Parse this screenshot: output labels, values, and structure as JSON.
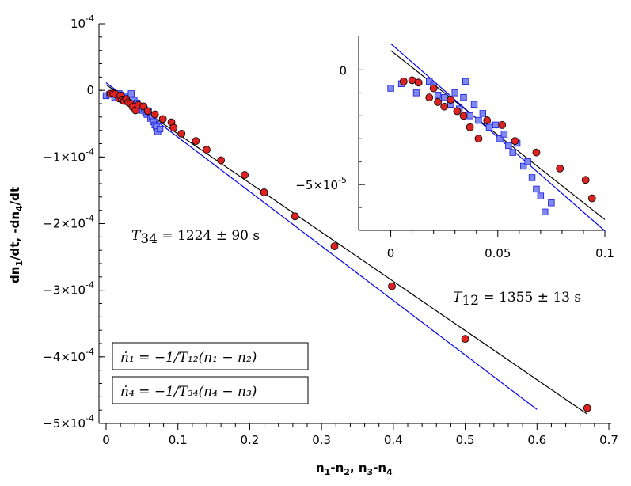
{
  "chart_data": [
    {
      "id": "main",
      "type": "scatter",
      "title": "",
      "xlabel": "n1-n2, n3-n4",
      "ylabel": "dn1/dt, -dn4/dt",
      "xlim": [
        0,
        0.7
      ],
      "ylim": [
        -0.0005,
        0.0001
      ],
      "grid": false,
      "x_ticks": [
        {
          "value": 0,
          "label": "0"
        },
        {
          "value": 0.1,
          "label": "0.1"
        },
        {
          "value": 0.2,
          "label": "0.2"
        },
        {
          "value": 0.3,
          "label": "0.3"
        },
        {
          "value": 0.4,
          "label": "0.4"
        },
        {
          "value": 0.5,
          "label": "0.5"
        },
        {
          "value": 0.6,
          "label": "0.6"
        },
        {
          "value": 0.7,
          "label": "0.7"
        }
      ],
      "y_ticks": [
        {
          "value": 0.0001,
          "mant": "10",
          "exp": "-4"
        },
        {
          "value": 0,
          "mant": "0",
          "exp": ""
        },
        {
          "value": -0.0001,
          "mant": "−1×10",
          "exp": "-4"
        },
        {
          "value": -0.0002,
          "mant": "−2×10",
          "exp": "-4"
        },
        {
          "value": -0.0003,
          "mant": "−3×10",
          "exp": "-4"
        },
        {
          "value": -0.0004,
          "mant": "−4×10",
          "exp": "-4"
        },
        {
          "value": -0.0005,
          "mant": "−5×10",
          "exp": "-4"
        }
      ],
      "series": [
        {
          "name": "dn1/dt (red circles)",
          "marker": "circle",
          "color": "#dd2222",
          "x": [
            0.006,
            0.01,
            0.013,
            0.018,
            0.02,
            0.022,
            0.025,
            0.028,
            0.031,
            0.034,
            0.037,
            0.041,
            0.045,
            0.052,
            0.058,
            0.068,
            0.079,
            0.091,
            0.094,
            0.105,
            0.125,
            0.14,
            0.16,
            0.193,
            0.22,
            0.263,
            0.318,
            0.398,
            0.5,
            0.67
          ],
          "y": [
            -5e-06,
            -4.5e-06,
            -5.5e-06,
            -1.2e-05,
            -8e-06,
            -1.4e-05,
            -1.6e-05,
            -1.3e-05,
            -1.8e-05,
            -2e-05,
            -2.5e-05,
            -3e-05,
            -2.2e-05,
            -2.4e-05,
            -3.1e-05,
            -3.6e-05,
            -4.3e-05,
            -4.8e-05,
            -5.6e-05,
            -6.5e-05,
            -7.6e-05,
            -8.9e-05,
            -0.000105,
            -0.000127,
            -0.000153,
            -0.000189,
            -0.000234,
            -0.000294,
            -0.000373,
            -0.000477
          ]
        },
        {
          "name": "-dn4/dt (blue squares)",
          "marker": "square",
          "color": "#7f88f0",
          "x": [
            0.0,
            0.005,
            0.012,
            0.018,
            0.02,
            0.022,
            0.025,
            0.028,
            0.03,
            0.032,
            0.034,
            0.035,
            0.037,
            0.039,
            0.041,
            0.043,
            0.046,
            0.049,
            0.051,
            0.053,
            0.055,
            0.057,
            0.059,
            0.062,
            0.064,
            0.066,
            0.068,
            0.07,
            0.072,
            0.075
          ],
          "y": [
            -8e-06,
            -6e-06,
            -1e-05,
            -5e-06,
            -7e-06,
            -1.1e-05,
            -1.2e-05,
            -1.5e-05,
            -1e-05,
            -1.7e-05,
            -1.2e-05,
            -5e-06,
            -2e-05,
            -1.5e-05,
            -2.2e-05,
            -1.9e-05,
            -2.5e-05,
            -2.4e-05,
            -3e-05,
            -2.8e-05,
            -3.3e-05,
            -3.6e-05,
            -3.2e-05,
            -4.2e-05,
            -4e-05,
            -4.7e-05,
            -5.2e-05,
            -5.5e-05,
            -6.2e-05,
            -5.8e-05
          ]
        }
      ],
      "fits": [
        {
          "name": "fit T12 (black)",
          "color": "#000000",
          "x": [
            0,
            0.67
          ],
          "y": [
            8.5e-06,
            -0.000486
          ]
        },
        {
          "name": "fit T34 (blue)",
          "color": "#0000ee",
          "x": [
            0,
            0.6
          ],
          "y": [
            1.15e-05,
            -0.000479
          ]
        }
      ],
      "annotations": [
        {
          "lhs": "T",
          "sub": "34",
          "rhs": " = 1224 ± 90 s"
        },
        {
          "lhs": "T",
          "sub": "12",
          "rhs": " = 1355 ± 13 s"
        }
      ],
      "legend": [
        {
          "text": "ṅ₁ = −1/T₁₂(n₁ − n₂)"
        },
        {
          "text": "ṅ₄ = −1/T₃₄(n₄ − n₃)"
        }
      ]
    },
    {
      "id": "inset",
      "type": "scatter",
      "title": "",
      "xlabel": "",
      "ylabel": "",
      "xlim": [
        -0.015,
        0.1
      ],
      "ylim": [
        -7e-05,
        1.5e-05
      ],
      "grid": false,
      "x_ticks": [
        {
          "value": 0,
          "label": "0"
        },
        {
          "value": 0.05,
          "label": "0.05"
        },
        {
          "value": 0.1,
          "label": "0.1"
        }
      ],
      "y_ticks": [
        {
          "value": 0,
          "mant": "0",
          "exp": ""
        },
        {
          "value": -5e-05,
          "mant": "−5×10",
          "exp": "-5"
        }
      ],
      "series_ref": "main",
      "x_max_shown": 0.1
    }
  ]
}
